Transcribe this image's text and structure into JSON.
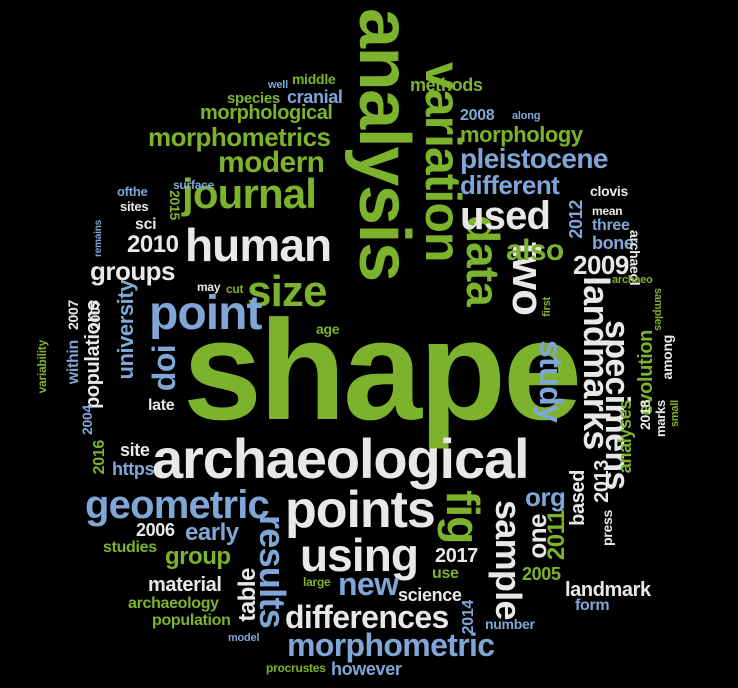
{
  "words": {
    "shape": "shape",
    "analysis": "analysis",
    "variation": "variation",
    "archaeological": "archaeological",
    "points": "points",
    "human": "human",
    "journal": "journal",
    "size": "size",
    "point": "point",
    "data": "data",
    "two": "two",
    "used": "used",
    "using": "using",
    "geometric": "geometric",
    "fig": "fig",
    "results": "results",
    "new": "new",
    "differences": "differences",
    "morphometric": "morphometric",
    "sample": "sample",
    "landmarks": "landmarks",
    "specimens": "specimens",
    "study": "study",
    "modern": "modern",
    "morphometrics": "morphometrics",
    "pleistocene": "pleistocene",
    "different": "different",
    "morphology": "morphology",
    "morphological": "morphological",
    "species": "species",
    "cranial": "cranial",
    "methods": "methods",
    "middle": "middle",
    "well": "well",
    "2008": "2008",
    "along": "along",
    "surface": "surface",
    "ofthe": "ofthe",
    "sites": "sites",
    "sci": "sci",
    "2015": "2015",
    "2010": "2010",
    "groups": "groups",
    "university": "university",
    "populations": "populations",
    "doi": "doi",
    "within": "within",
    "2007a": "2007",
    "2007b": "2007",
    "variability": "variability",
    "remains": "remains",
    "also": "also",
    "2009": "2009",
    "2012": "2012",
    "three": "three",
    "bone": "bone",
    "mean": "mean",
    "clovis": "clovis",
    "archaeol": "archaeol",
    "archaeo": "archaeo",
    "samples": "samples",
    "first": "first",
    "among": "among",
    "evolution": "evolution",
    "marks": "marks",
    "small": "small",
    "2018": "2018",
    "analyses": "analyses",
    "2013": "2013",
    "press": "press",
    "based": "based",
    "one": "one",
    "2011": "2011",
    "org": "org",
    "may": "may",
    "cut": "cut",
    "age": "age",
    "late": "late",
    "2004": "2004",
    "2016": "2016",
    "site": "site",
    "https": "https",
    "early": "early",
    "2006": "2006",
    "group": "group",
    "studies": "studies",
    "material": "material",
    "archaeology": "archaeology",
    "population": "population",
    "model": "model",
    "table": "table",
    "large": "large",
    "procrustes": "procrustes",
    "however": "however",
    "science": "science",
    "2014": "2014",
    "2017": "2017",
    "use": "use",
    "2005": "2005",
    "landmark": "landmark",
    "form": "form",
    "number": "number"
  },
  "colors": {
    "background": "#000000",
    "green": "#7db22d",
    "blue": "#7fa6d6",
    "white": "#e8e8e8"
  }
}
